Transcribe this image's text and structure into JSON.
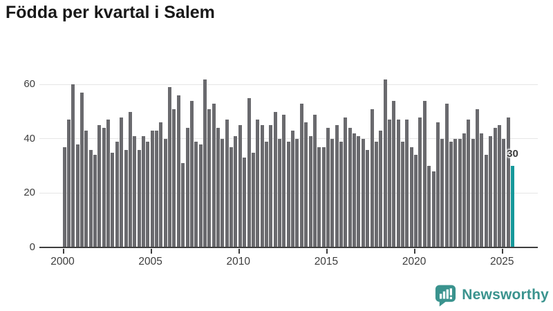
{
  "title": "Födda per kvartal i Salem",
  "colors": {
    "bar": "#6a6a6e",
    "highlight": "#16989a",
    "grid": "#e6e6e6",
    "axis": "#3d3d3d",
    "text": "#3d3d3d",
    "title": "#191919",
    "logo": "#3a938e"
  },
  "chart_data": {
    "type": "bar",
    "title": "Födda per kvartal i Salem",
    "x_axis": {
      "start_period": "2000 Q1",
      "end_period": "2025 Q3",
      "frequency": "quarterly",
      "ticks": [
        2000,
        2005,
        2010,
        2015,
        2020,
        2025
      ],
      "tick_labels": [
        "2000",
        "2005",
        "2010",
        "2015",
        "2020",
        "2025"
      ]
    },
    "y_axis": {
      "ticks": [
        0,
        20,
        40,
        60
      ],
      "tick_labels": [
        "0",
        "20",
        "40",
        "60"
      ],
      "range": [
        0,
        65
      ],
      "gridlines": true
    },
    "legend": "none",
    "values": [
      37,
      47,
      60,
      38,
      57,
      43,
      36,
      34,
      45,
      44,
      47,
      35,
      39,
      48,
      36,
      50,
      41,
      36,
      41,
      39,
      43,
      43,
      46,
      40,
      59,
      51,
      56,
      31,
      44,
      54,
      39,
      38,
      62,
      51,
      53,
      44,
      40,
      47,
      37,
      41,
      45,
      33,
      55,
      35,
      47,
      45,
      39,
      45,
      50,
      40,
      49,
      39,
      43,
      40,
      53,
      46,
      41,
      49,
      37,
      37,
      44,
      40,
      45,
      39,
      48,
      44,
      42,
      41,
      40,
      36,
      51,
      39,
      43,
      62,
      47,
      54,
      47,
      39,
      47,
      37,
      34,
      48,
      54,
      30,
      28,
      46,
      40,
      53,
      39,
      40,
      40,
      42,
      47,
      40,
      51,
      42,
      34,
      41,
      44,
      45,
      40,
      48,
      30
    ],
    "highlight": {
      "index": 102,
      "value": 30,
      "label": "30"
    }
  },
  "footer": {
    "brand": "Newsworthy",
    "logo_icon": "bar-chart-speech-bubble-icon"
  }
}
